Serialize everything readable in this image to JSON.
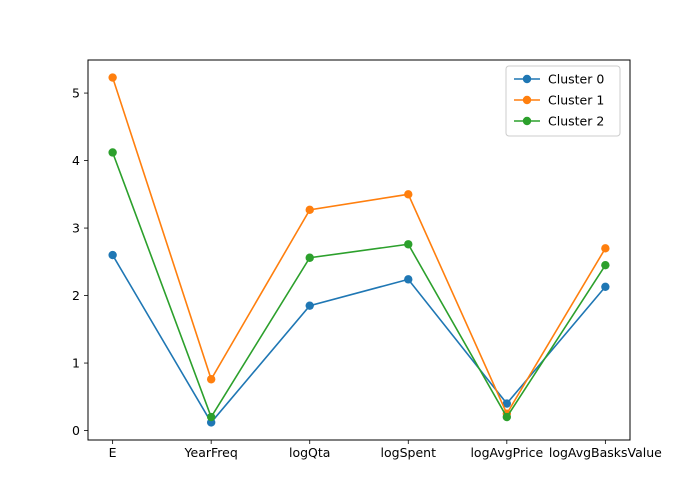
{
  "chart_data": {
    "type": "line",
    "categories": [
      "E",
      "YearFreq",
      "logQta",
      "logSpent",
      "logAvgPrice",
      "logAvgBasksValue"
    ],
    "series": [
      {
        "name": "Cluster 0",
        "color": "#1f77b4",
        "values": [
          2.6,
          0.12,
          1.85,
          2.24,
          0.4,
          2.13
        ]
      },
      {
        "name": "Cluster 1",
        "color": "#ff7f0e",
        "values": [
          5.23,
          0.76,
          3.27,
          3.5,
          0.25,
          2.7
        ]
      },
      {
        "name": "Cluster 2",
        "color": "#2ca02c",
        "values": [
          4.12,
          0.2,
          2.56,
          2.76,
          0.2,
          2.45
        ]
      }
    ],
    "yticks": [
      0,
      1,
      2,
      3,
      4,
      5
    ],
    "ylim": [
      -0.14,
      5.49
    ],
    "xlim": [
      -0.25,
      5.25
    ],
    "title": "",
    "xlabel": "",
    "ylabel": "",
    "marker": "circle",
    "grid": false,
    "legend_position": "top-right"
  }
}
